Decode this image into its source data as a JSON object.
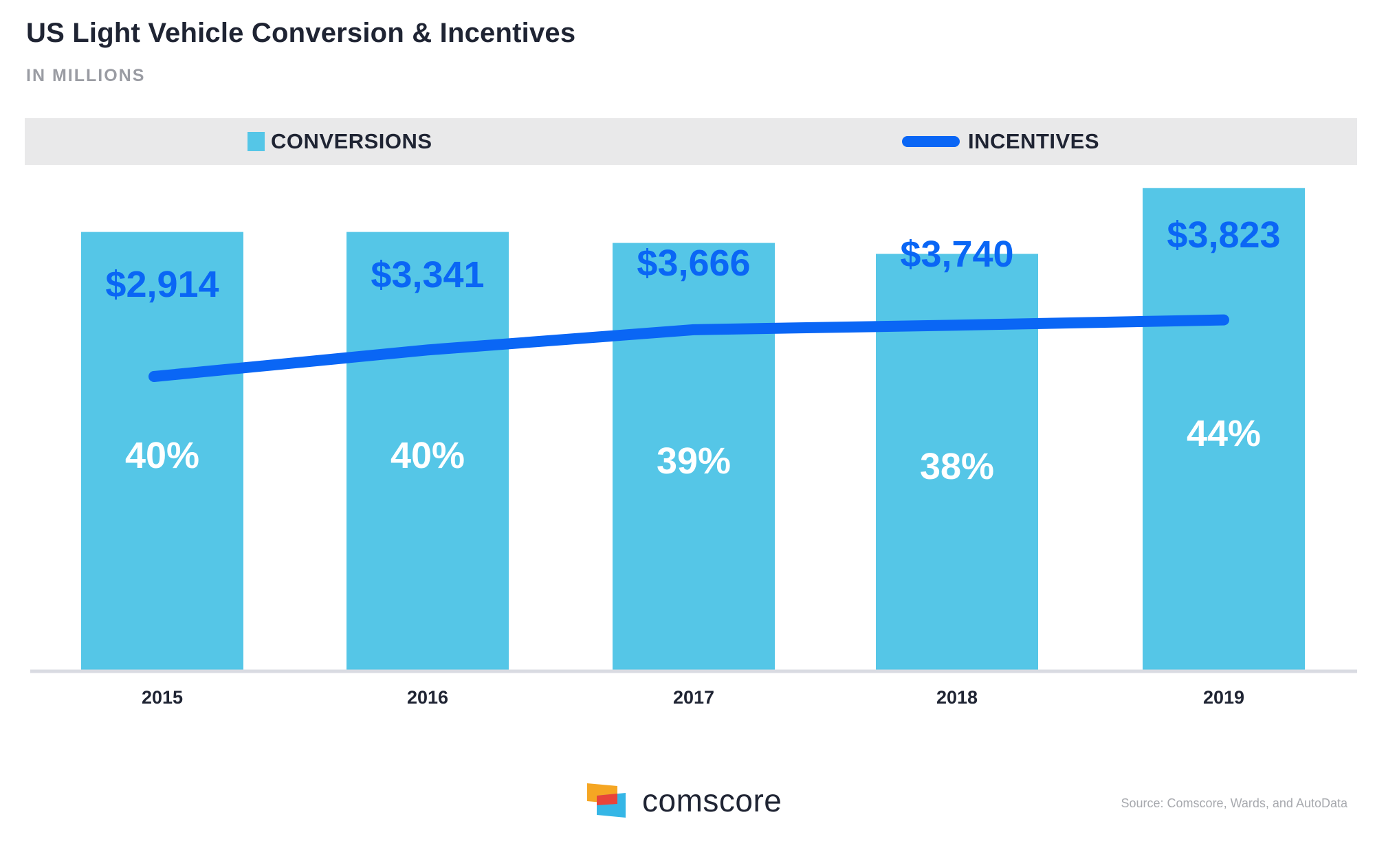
{
  "title": "US Light Vehicle Conversion & Incentives",
  "subtitle": "IN MILLIONS",
  "legend": {
    "conversions": "CONVERSIONS",
    "incentives": "INCENTIVES"
  },
  "colors": {
    "bar": "#55c6e7",
    "line": "#0a66f5",
    "axis": "#d9dbe2",
    "text": "#1f2433"
  },
  "footer": {
    "brand": "comscore",
    "source": "Source: Comscore, Wards, and AutoData"
  },
  "chart_data": {
    "type": "bar",
    "title": "US Light Vehicle Conversion & Incentives",
    "subtitle": "IN MILLIONS",
    "categories": [
      "2015",
      "2016",
      "2017",
      "2018",
      "2019"
    ],
    "series": [
      {
        "name": "CONVERSIONS",
        "type": "bar",
        "values": [
          40,
          40,
          39,
          38,
          44
        ],
        "labels": [
          "40%",
          "40%",
          "39%",
          "38%",
          "44%"
        ],
        "unit": "%"
      },
      {
        "name": "INCENTIVES",
        "type": "line",
        "values": [
          2914,
          3341,
          3666,
          3740,
          3823
        ],
        "labels": [
          "$2,914",
          "$3,341",
          "$3,666",
          "$3,740",
          "$3,823"
        ],
        "unit": "$"
      }
    ],
    "legend_position": "top",
    "grid": false
  }
}
